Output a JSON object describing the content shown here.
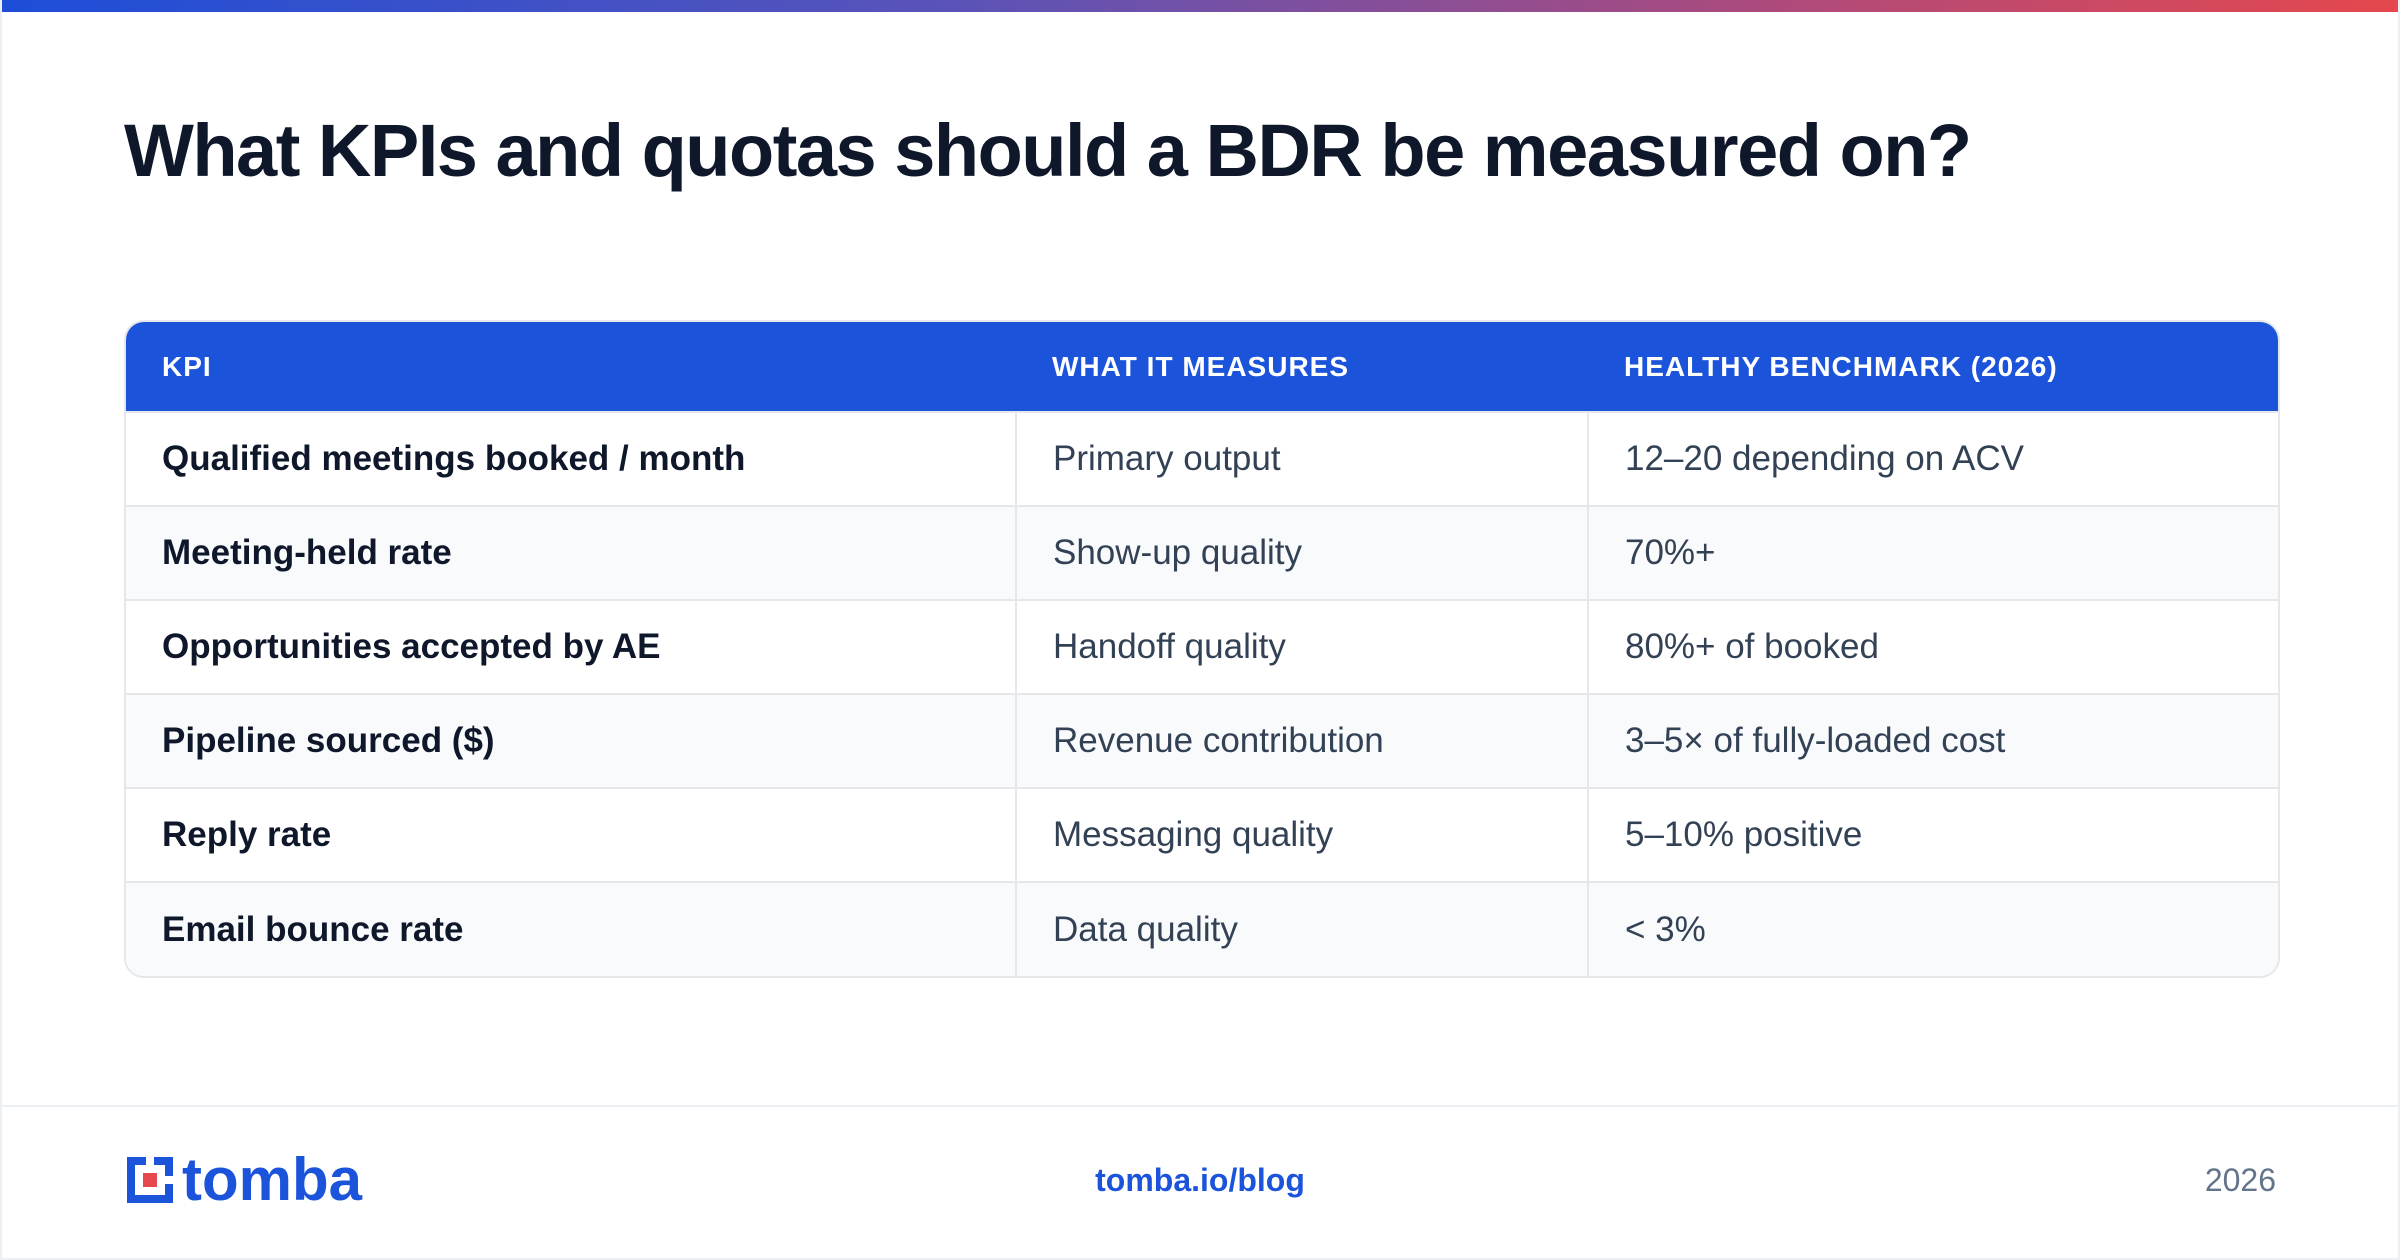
{
  "title": "What KPIs and quotas should a BDR be measured on?",
  "table": {
    "headers": [
      "KPI",
      "WHAT IT MEASURES",
      "HEALTHY BENCHMARK (2026)"
    ],
    "rows": [
      [
        "Qualified meetings booked / month",
        "Primary output",
        "12–20 depending on ACV"
      ],
      [
        "Meeting-held rate",
        "Show-up quality",
        "70%+"
      ],
      [
        "Opportunities accepted by AE",
        "Handoff quality",
        "80%+ of booked"
      ],
      [
        "Pipeline sourced ($)",
        "Revenue contribution",
        "3–5× of fully-loaded cost"
      ],
      [
        "Reply rate",
        "Messaging quality",
        "5–10% positive"
      ],
      [
        "Email bounce rate",
        "Data quality",
        "< 3%"
      ]
    ]
  },
  "footer": {
    "logo_text": "tomba",
    "logo_icon": "tomba-logo-icon",
    "link": "tomba.io/blog",
    "year": "2026"
  },
  "colors": {
    "brand_blue": "#1b54db",
    "accent_red": "#e5484d",
    "title": "#0f172a"
  }
}
